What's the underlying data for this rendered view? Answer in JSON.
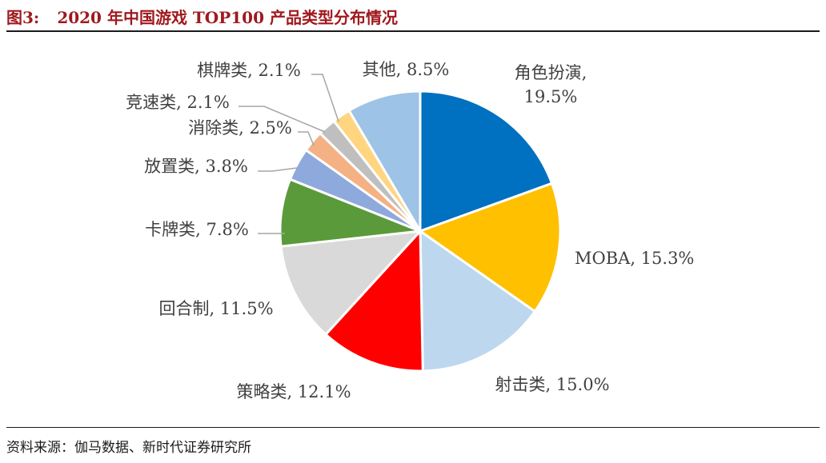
{
  "header": {
    "figure_number": "图3:",
    "title": "2020 年中国游戏 TOP100 产品类型分布情况"
  },
  "footer": {
    "source": "资料来源：伽马数据、新时代证券研究所"
  },
  "chart_data": {
    "type": "pie",
    "title": "2020 年中国游戏 TOP100 产品类型分布情况",
    "unit": "%",
    "slices": [
      {
        "name": "角色扮演",
        "value": 19.5,
        "value_label": "19.5%",
        "color": "#0070c0"
      },
      {
        "name": "MOBA",
        "value": 15.3,
        "value_label": "15.3%",
        "color": "#ffc000"
      },
      {
        "name": "射击类",
        "value": 15.0,
        "value_label": "15.0%",
        "color": "#bdd7ee"
      },
      {
        "name": "策略类",
        "value": 12.1,
        "value_label": "12.1%",
        "color": "#ff0000"
      },
      {
        "name": "回合制",
        "value": 11.5,
        "value_label": "11.5%",
        "color": "#d9d9d9"
      },
      {
        "name": "卡牌类",
        "value": 7.8,
        "value_label": "7.8%",
        "color": "#5b9a3a"
      },
      {
        "name": "放置类",
        "value": 3.8,
        "value_label": "3.8%",
        "color": "#8ea9db"
      },
      {
        "name": "消除类",
        "value": 2.5,
        "value_label": "2.5%",
        "color": "#f4b183"
      },
      {
        "name": "竞速类",
        "value": 2.1,
        "value_label": "2.1%",
        "color": "#bfbfbf"
      },
      {
        "name": "棋牌类",
        "value": 2.1,
        "value_label": "2.1%",
        "color": "#ffd580"
      },
      {
        "name": "其他",
        "value": 8.5,
        "value_label": "8.5%",
        "color": "#9dc3e6"
      }
    ]
  }
}
